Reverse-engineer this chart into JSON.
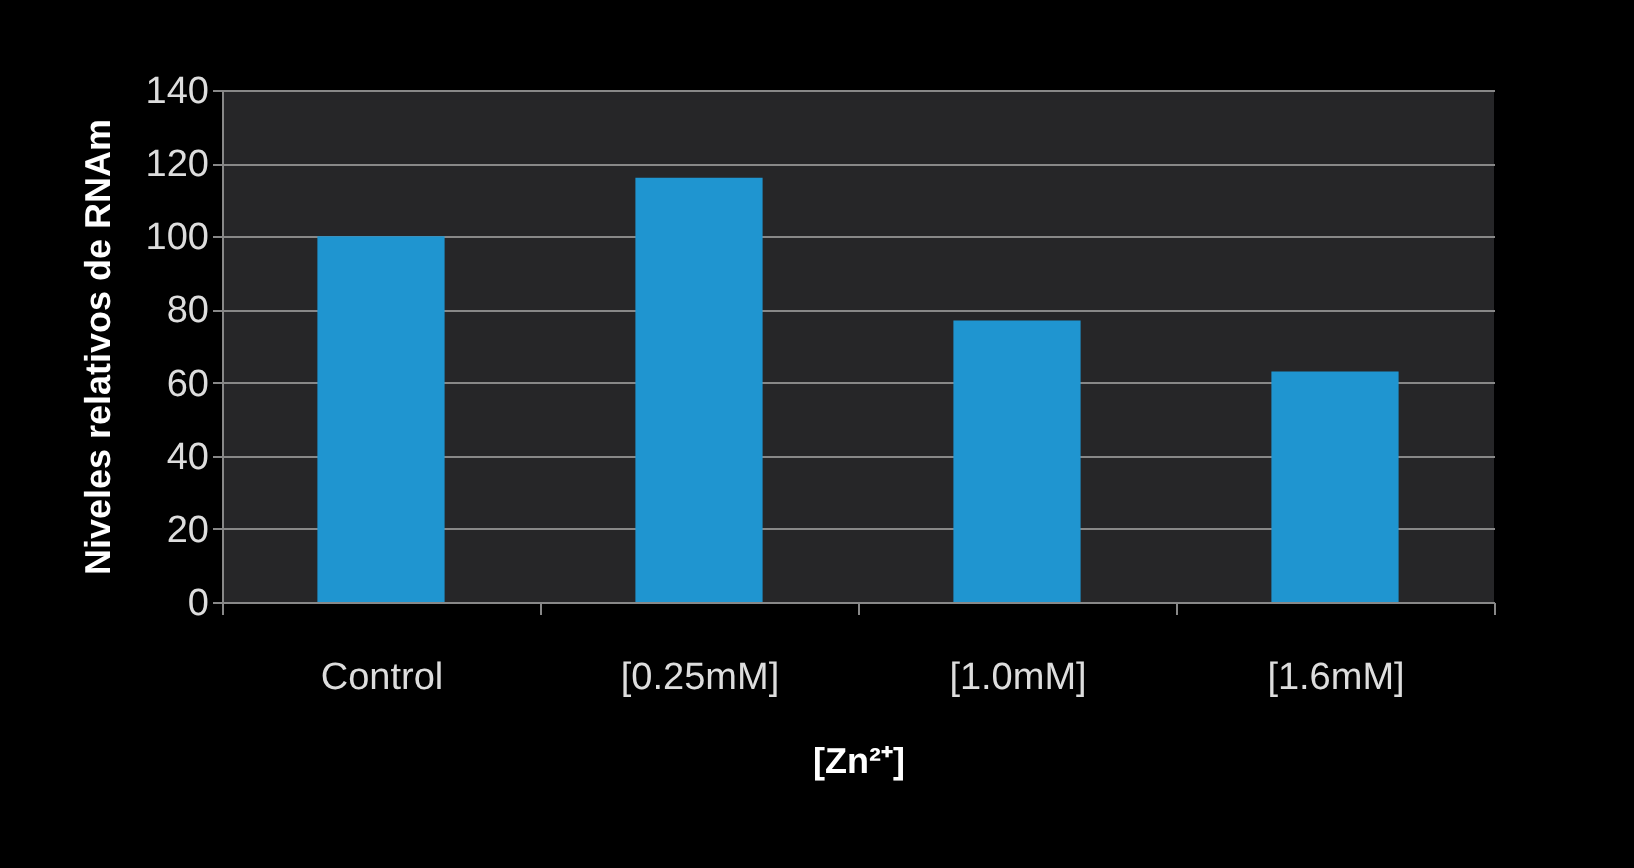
{
  "chart_data": {
    "type": "bar",
    "xlabel": "[Zn²⁺]",
    "ylabel": "Niveles relativos de RNAm",
    "categories": [
      "Control",
      "[0.25mM]",
      "[1.0mM]",
      "[1.6mM]"
    ],
    "values": [
      100,
      116,
      77,
      63
    ],
    "color": "#1f95d0",
    "ylim": [
      0,
      140
    ],
    "yticks": [
      0,
      20,
      40,
      60,
      80,
      100,
      120,
      140
    ],
    "grid": "y"
  }
}
